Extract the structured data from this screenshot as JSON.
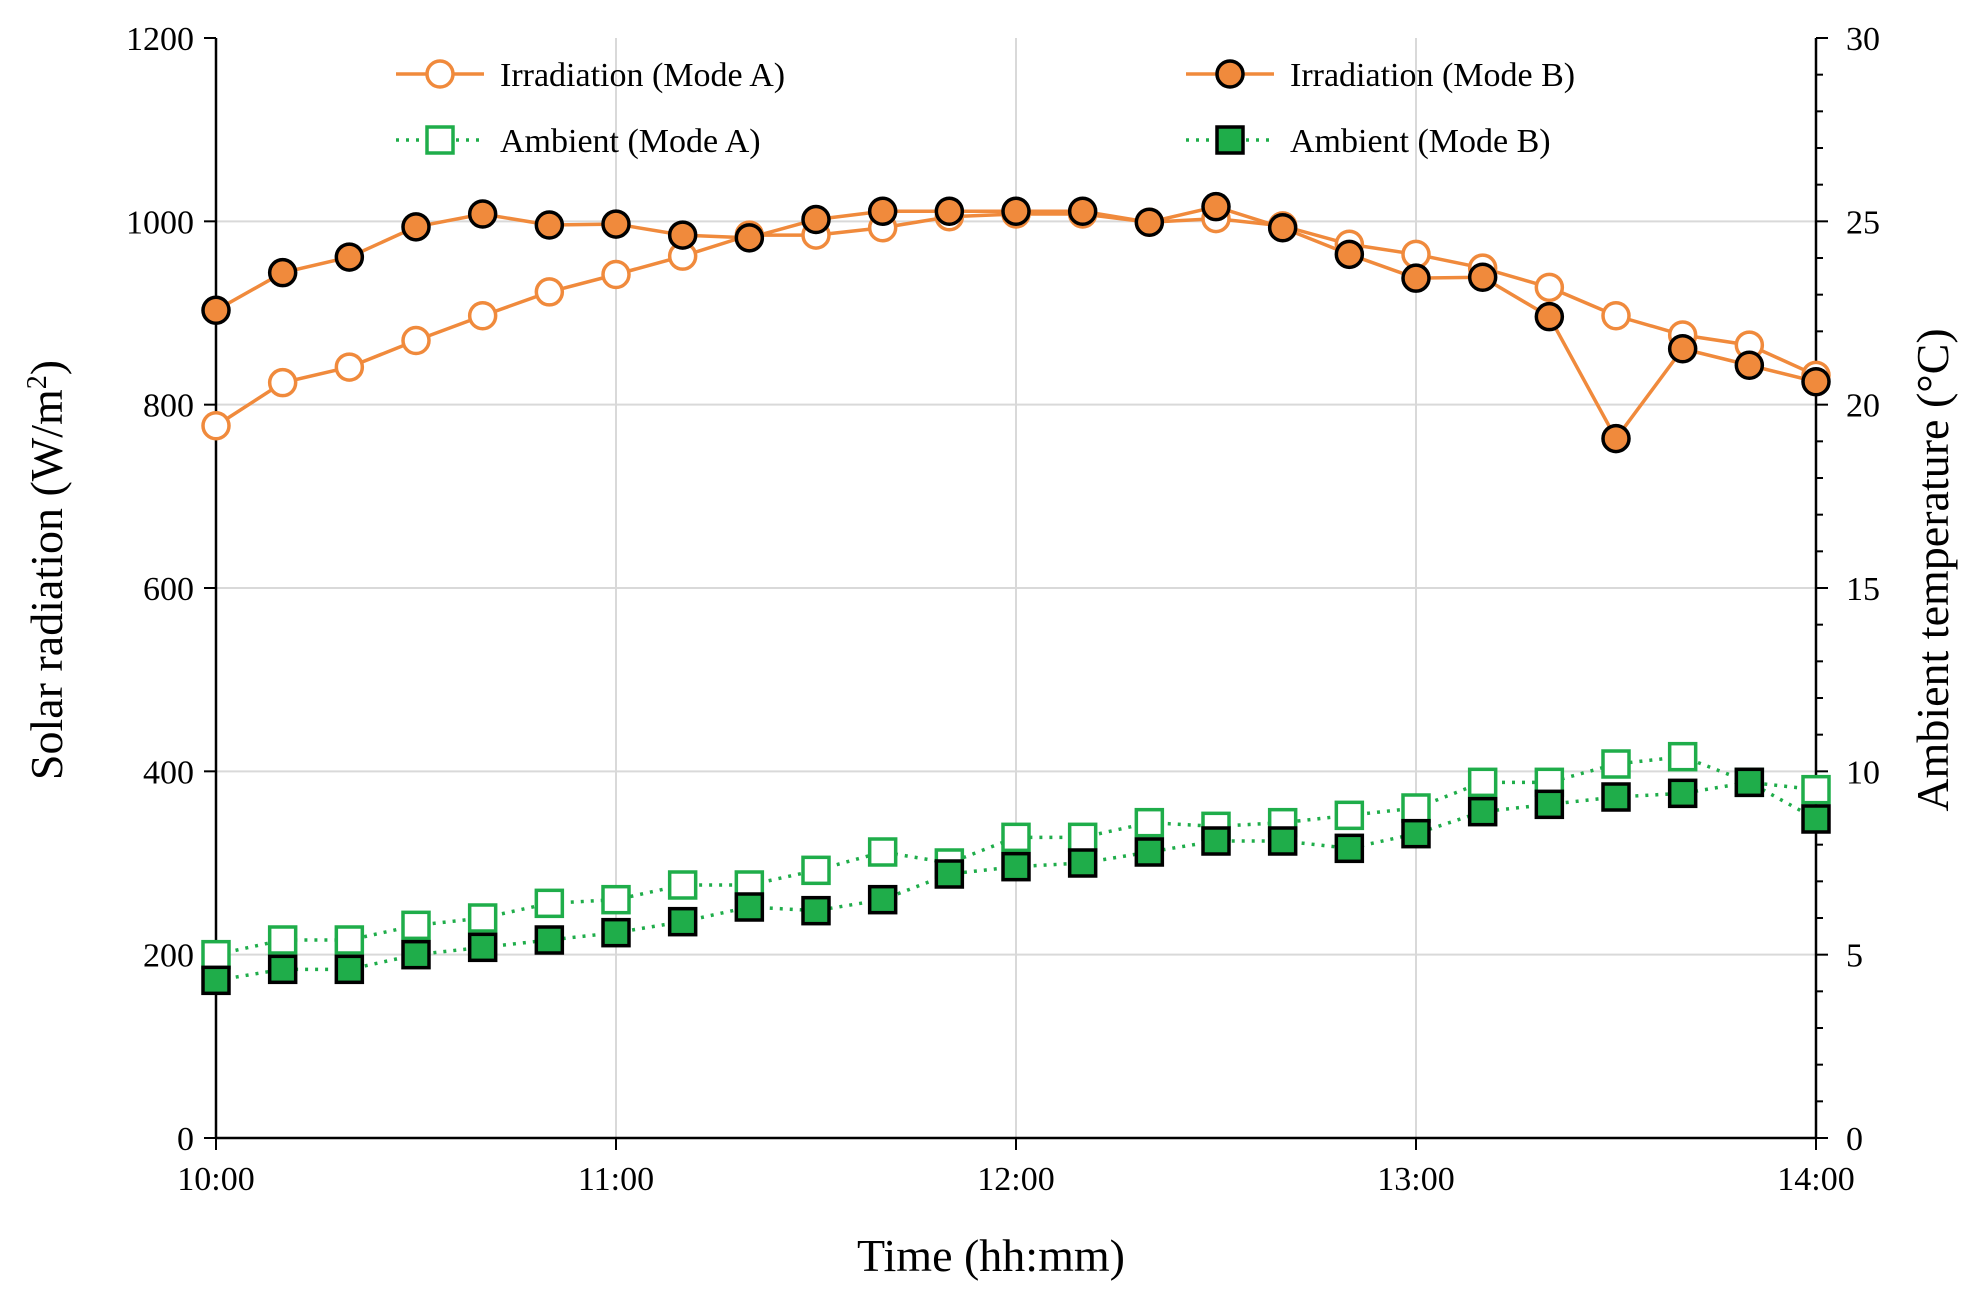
{
  "chart_data": {
    "type": "line",
    "xlabel": "Time (hh:mm)",
    "ylabel": "Solar radiation (W/m",
    "ylabel_sup": "2",
    "ylabel_end": ")",
    "y2label": "Ambient temperature (°C)",
    "xlim": [
      "10:00",
      "14:00"
    ],
    "ylim": [
      0,
      1200
    ],
    "y2lim": [
      0,
      30
    ],
    "x_ticks": [
      "10:00",
      "11:00",
      "12:00",
      "13:00",
      "14:00"
    ],
    "y_ticks": [
      "0",
      "200",
      "400",
      "600",
      "800",
      "1000",
      "1200"
    ],
    "y2_ticks": [
      "0",
      "5",
      "10",
      "15",
      "20",
      "25",
      "30"
    ],
    "grid": true,
    "legend_placement": "top",
    "x": [
      "10:00",
      "10:10",
      "10:20",
      "10:30",
      "10:40",
      "10:50",
      "11:00",
      "11:10",
      "11:20",
      "11:30",
      "11:40",
      "11:50",
      "12:00",
      "12:10",
      "12:20",
      "12:30",
      "12:40",
      "12:50",
      "13:00",
      "13:10",
      "13:20",
      "13:30",
      "13:40",
      "13:50",
      "14:00"
    ],
    "series": [
      {
        "name": "Irradiation (Mode A)",
        "axis": "left",
        "color": "#f08a3c",
        "values": [
          777,
          824,
          841,
          870,
          897,
          923,
          942,
          962,
          985,
          985,
          993,
          1005,
          1008,
          1008,
          999,
          1003,
          995,
          975,
          964,
          949,
          928,
          897,
          876,
          865,
          832
        ]
      },
      {
        "name": "Irradiation (Mode B)",
        "axis": "left",
        "color": "#f08a3c",
        "values": [
          903,
          944,
          961,
          994,
          1008,
          996,
          997,
          985,
          982,
          1002,
          1011,
          1011,
          1011,
          1011,
          999,
          1016,
          993,
          964,
          938,
          939,
          896,
          763,
          861,
          843,
          825
        ]
      },
      {
        "name": "Ambient (Mode A)",
        "axis": "right",
        "color": "#1fad4a",
        "values": [
          5.0,
          5.4,
          5.4,
          5.8,
          6.0,
          6.4,
          6.5,
          6.9,
          6.9,
          7.3,
          7.8,
          7.5,
          8.2,
          8.2,
          8.6,
          8.5,
          8.6,
          8.8,
          9.0,
          9.7,
          9.7,
          10.2,
          10.4,
          9.7,
          9.5
        ]
      },
      {
        "name": "Ambient (Mode B)",
        "axis": "right",
        "color": "#1fad4a",
        "values": [
          4.3,
          4.6,
          4.6,
          5.0,
          5.2,
          5.4,
          5.6,
          5.9,
          6.3,
          6.2,
          6.5,
          7.2,
          7.4,
          7.5,
          7.8,
          8.1,
          8.1,
          7.9,
          8.3,
          8.9,
          9.1,
          9.3,
          9.4,
          9.7,
          8.7
        ]
      }
    ]
  }
}
